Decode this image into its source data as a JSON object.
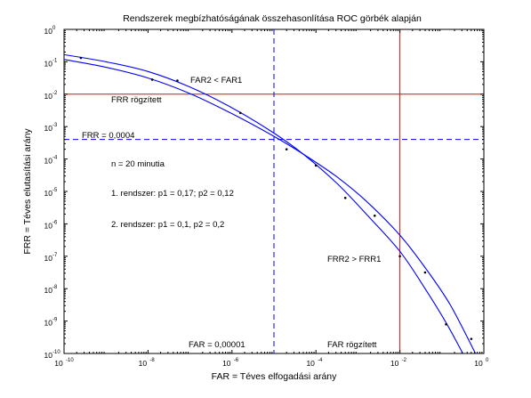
{
  "chart_data": {
    "type": "line",
    "title": "Rendszerek megbízhatóságának összehasonlítása ROC görbék alapján",
    "xlabel": "FAR = Téves elfogadási arány",
    "ylabel": "FRR = Téves elutasítási arány",
    "xscale": "log",
    "yscale": "log",
    "xlim_exp": [
      -10,
      0
    ],
    "ylim_exp": [
      -10,
      0
    ],
    "x_tick_labels": [
      {
        "base": "10",
        "exp": "-10"
      },
      {
        "base": "10",
        "exp": "-8"
      },
      {
        "base": "10",
        "exp": "-6"
      },
      {
        "base": "10",
        "exp": "-4"
      },
      {
        "base": "10",
        "exp": "-2"
      },
      {
        "base": "10",
        "exp": "0"
      }
    ],
    "y_tick_labels": [
      {
        "base": "10",
        "exp": "0"
      },
      {
        "base": "10",
        "exp": "-1"
      },
      {
        "base": "10",
        "exp": "-2"
      },
      {
        "base": "10",
        "exp": "-3"
      },
      {
        "base": "10",
        "exp": "-4"
      },
      {
        "base": "10",
        "exp": "-5"
      },
      {
        "base": "10",
        "exp": "-6"
      },
      {
        "base": "10",
        "exp": "-7"
      },
      {
        "base": "10",
        "exp": "-8"
      },
      {
        "base": "10",
        "exp": "-9"
      },
      {
        "base": "10",
        "exp": "-10"
      }
    ],
    "series": [
      {
        "color": "#0000ff",
        "points_log10": [
          [
            -10.0,
            -0.78
          ],
          [
            -9.0,
            -1.0
          ],
          [
            -8.0,
            -1.3
          ],
          [
            -7.0,
            -1.78
          ],
          [
            -6.0,
            -2.42
          ],
          [
            -5.0,
            -3.2
          ],
          [
            -4.3,
            -3.85
          ],
          [
            -3.5,
            -4.75
          ],
          [
            -2.8,
            -5.7
          ],
          [
            -2.0,
            -6.85
          ],
          [
            -1.4,
            -8.0
          ],
          [
            -0.9,
            -9.05
          ],
          [
            -0.5,
            -10.0
          ]
        ],
        "markers_log10": [
          [
            -9.6,
            -0.88
          ],
          [
            -7.3,
            -1.58
          ],
          [
            -5.8,
            -2.58
          ],
          [
            -3.3,
            -5.2
          ],
          [
            -2.0,
            -7.0
          ],
          [
            -0.9,
            -9.1
          ]
        ]
      },
      {
        "color": "#0000ff",
        "points_log10": [
          [
            -10.0,
            -0.93
          ],
          [
            -9.0,
            -1.17
          ],
          [
            -8.0,
            -1.5
          ],
          [
            -7.0,
            -1.98
          ],
          [
            -6.0,
            -2.6
          ],
          [
            -5.0,
            -3.3
          ],
          [
            -4.3,
            -3.85
          ],
          [
            -3.5,
            -4.55
          ],
          [
            -2.8,
            -5.3
          ],
          [
            -2.0,
            -6.35
          ],
          [
            -1.4,
            -7.35
          ],
          [
            -0.8,
            -8.5
          ],
          [
            -0.2,
            -10.0
          ]
        ],
        "markers_log10": [
          [
            -7.9,
            -1.55
          ],
          [
            -4.7,
            -3.7
          ],
          [
            -4.0,
            -4.2
          ],
          [
            -2.6,
            -5.75
          ],
          [
            -1.4,
            -7.5
          ],
          [
            -0.3,
            -9.55
          ]
        ]
      }
    ],
    "reference_lines": {
      "red_horizontal_log10": -2,
      "red_vertical_log10": -2,
      "blue_dashed_vertical_log10": -5,
      "blue_dashed_horizontal_log10": -3.398
    },
    "annotations": {
      "far2_lt_far1": "FAR2 < FAR1",
      "frr_fixed": "FRR rögzített",
      "frr_value": "FRR = 0,0004",
      "n_minutes": "n = 20 minutia",
      "system1": "1. rendszer: p1 = 0,17; p2 = 0,12",
      "system2": "2. rendszer: p1 = 0,1, p2 = 0,2",
      "frr2_gt_frr1": "FRR2 > FRR1",
      "far_value": "FAR = 0,00001",
      "far_fixed": "FAR rögzített"
    },
    "grid": false,
    "legend": "none"
  }
}
